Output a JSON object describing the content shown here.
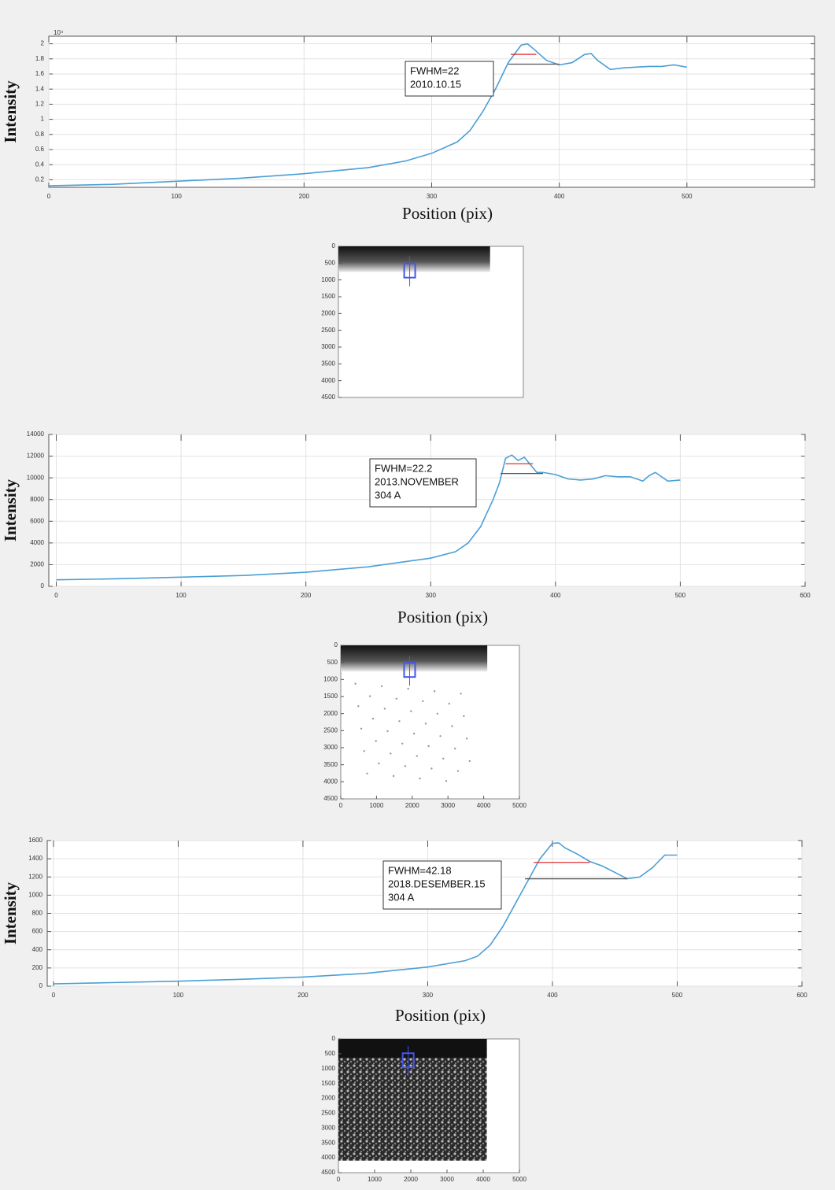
{
  "chart_data": [
    {
      "type": "line",
      "y_exponent_label": "10⁴",
      "ylabel": "Intensity",
      "xlabel": "Position (pix)",
      "xlim": [
        0,
        600
      ],
      "xticks": [
        0,
        100,
        200,
        300,
        400,
        500
      ],
      "ylim": [
        0.1,
        2.1
      ],
      "yticks": [
        0.2,
        0.4,
        0.6,
        0.8,
        1,
        1.2,
        1.4,
        1.6,
        1.8,
        2
      ],
      "grid": true,
      "x": [
        0,
        50,
        100,
        150,
        200,
        250,
        280,
        300,
        320,
        330,
        340,
        350,
        360,
        370,
        375,
        380,
        390,
        400,
        410,
        420,
        425,
        430,
        440,
        450,
        460,
        470,
        480,
        490,
        500
      ],
      "series": [
        {
          "color": "#4a9fd5",
          "values": [
            0.12,
            0.14,
            0.18,
            0.22,
            0.28,
            0.36,
            0.45,
            0.55,
            0.7,
            0.85,
            1.1,
            1.4,
            1.75,
            1.98,
            2.0,
            1.93,
            1.78,
            1.72,
            1.75,
            1.86,
            1.87,
            1.78,
            1.66,
            1.68,
            1.69,
            1.7,
            1.7,
            1.72,
            1.69
          ]
        }
      ],
      "reference_lines": [
        {
          "color": "#e03030",
          "x": [
            362,
            382
          ],
          "y": [
            1.86,
            1.86
          ]
        },
        {
          "color": "#555555",
          "x": [
            360,
            400
          ],
          "y": [
            1.73,
            1.73
          ]
        }
      ],
      "annotation": [
        "FWHM=22",
        "2010.10.15"
      ]
    },
    {
      "type": "image",
      "ylim": [
        0,
        4500
      ],
      "yticks": [
        0,
        500,
        1000,
        1500,
        2000,
        2500,
        3000,
        3500,
        4000,
        4500
      ],
      "xlim": [
        0,
        5000
      ],
      "xticks": []
    },
    {
      "type": "line",
      "ylabel": "Intensity",
      "xlabel": "Position (pix)",
      "xlim": [
        -6,
        600
      ],
      "xticks": [
        0,
        100,
        200,
        300,
        400,
        500,
        600
      ],
      "ylim": [
        0,
        14000
      ],
      "yticks": [
        0,
        2000,
        4000,
        6000,
        8000,
        10000,
        12000,
        14000
      ],
      "grid": true,
      "x": [
        0,
        50,
        100,
        150,
        200,
        250,
        300,
        320,
        330,
        340,
        350,
        355,
        360,
        365,
        370,
        375,
        380,
        385,
        390,
        400,
        410,
        420,
        430,
        440,
        450,
        460,
        470,
        475,
        480,
        490,
        500
      ],
      "series": [
        {
          "color": "#4a9fd5",
          "values": [
            600,
            700,
            850,
            1000,
            1300,
            1800,
            2600,
            3200,
            4000,
            5500,
            8000,
            9500,
            11800,
            12100,
            11600,
            11900,
            11200,
            10500,
            10500,
            10300,
            9900,
            9800,
            9900,
            10200,
            10100,
            10100,
            9700,
            10200,
            10500,
            9700,
            9800
          ]
        }
      ],
      "reference_lines": [
        {
          "color": "#e03030",
          "x": [
            360,
            382
          ],
          "y": [
            11300,
            11300
          ]
        },
        {
          "color": "#555555",
          "x": [
            356,
            390
          ],
          "y": [
            10400,
            10400
          ]
        }
      ],
      "annotation": [
        "FWHM=22.2",
        "2013.NOVEMBER",
        "304 A"
      ]
    },
    {
      "type": "image",
      "ylim": [
        0,
        4500
      ],
      "yticks": [
        0,
        500,
        1000,
        1500,
        2000,
        2500,
        3000,
        3500,
        4000,
        4500
      ],
      "xlim": [
        0,
        5000
      ],
      "xticks": [
        0,
        1000,
        2000,
        3000,
        4000,
        5000
      ]
    },
    {
      "type": "line",
      "ylabel": "Intensity",
      "xlabel": "Position (pix)",
      "xlim": [
        -5,
        600
      ],
      "xticks": [
        0,
        100,
        200,
        300,
        400,
        500,
        600
      ],
      "ylim": [
        0,
        1600
      ],
      "yticks": [
        0,
        200,
        400,
        600,
        800,
        1000,
        1200,
        1400,
        1600
      ],
      "grid": true,
      "x": [
        0,
        50,
        100,
        150,
        200,
        250,
        300,
        330,
        340,
        350,
        360,
        370,
        380,
        390,
        400,
        405,
        410,
        420,
        430,
        440,
        450,
        460,
        470,
        480,
        490,
        500
      ],
      "series": [
        {
          "color": "#4a9fd5",
          "values": [
            25,
            40,
            55,
            75,
            100,
            140,
            210,
            280,
            330,
            450,
            650,
            900,
            1150,
            1400,
            1570,
            1575,
            1520,
            1450,
            1370,
            1320,
            1250,
            1180,
            1200,
            1300,
            1440,
            1440
          ]
        }
      ],
      "reference_lines": [
        {
          "color": "#e03030",
          "x": [
            385,
            430
          ],
          "y": [
            1360,
            1360
          ]
        },
        {
          "color": "#555555",
          "x": [
            378,
            460
          ],
          "y": [
            1180,
            1180
          ]
        }
      ],
      "annotation": [
        "FWHM=42.18",
        "2018.DESEMBER.15",
        "304 A"
      ]
    },
    {
      "type": "image",
      "ylim": [
        0,
        4500
      ],
      "yticks": [
        0,
        500,
        1000,
        1500,
        2000,
        2500,
        3000,
        3500,
        4000,
        4500
      ],
      "xlim": [
        0,
        5000
      ],
      "xticks": [
        0,
        1000,
        2000,
        3000,
        4000,
        5000
      ]
    }
  ]
}
